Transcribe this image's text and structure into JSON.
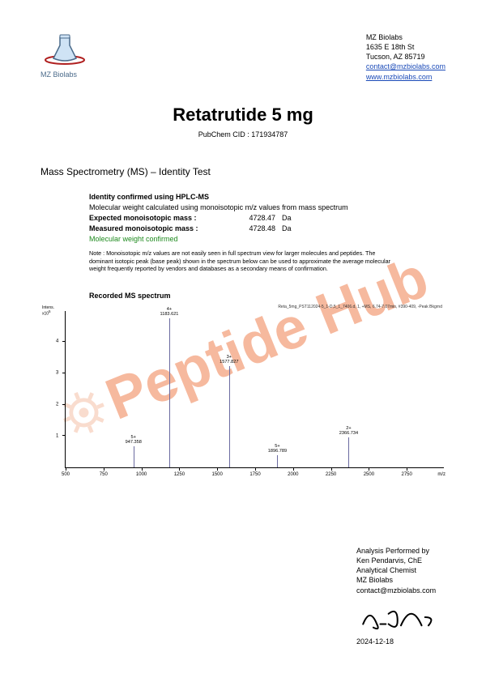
{
  "company": {
    "name": "MZ Biolabs",
    "addr1": "1635 E 18th St",
    "addr2": "Tucson, AZ 85719",
    "email": "contact@mzbiolabs.com",
    "web": "www.mzbiolabs.com"
  },
  "title": "Retatrutide 5 mg",
  "subtitle": "PubChem CID : 171934787",
  "section_heading": "Mass Spectrometry (MS) – Identity Test",
  "identity_line": "Identity confirmed using HPLC-MS",
  "mw_line": "Molecular weight calculated using monoisotopic m/z values from mass spectrum",
  "expected_label": "Expected monoisotopic mass :",
  "expected_value": "4728.47",
  "measured_label": "Measured monoisotopic mass :",
  "measured_value": "4728.48",
  "unit": "Da",
  "confirm_text": "Molecular weight confirmed",
  "note_text": "Note : Monoisotopic m/z values are not easily seen in full spectrum view for larger molecules and peptides. The dominant isotopic peak (base peak) shown in the spectrum below can be used to approximate the average molecular weight frequently reported by vendors and databases as a secondary means of confirmation.",
  "spectrum_heading": "Recorded MS spectrum",
  "chart": {
    "meta_text": "Reta_5mg_PST112024-5_1-D,5_1_7406.d, 1, +MS, 6.74-7.07min, #390-409, -Peak Bkgrnd",
    "x_min": 500,
    "x_max": 3000,
    "y_max_label": "Intens.\nx10⁵",
    "x_ticks": [
      500,
      750,
      1000,
      1250,
      1500,
      1750,
      2000,
      2250,
      2500,
      2750
    ],
    "y_ticks": [
      1,
      2,
      3,
      4
    ],
    "mz_label": "m/z",
    "peaks": [
      {
        "mz": 947.358,
        "rel_h": 0.14,
        "charge": "5+",
        "label": "947.358"
      },
      {
        "mz": 1183.621,
        "rel_h": 1.0,
        "charge": "4+",
        "label": "1183.621"
      },
      {
        "mz": 1577.827,
        "rel_h": 0.68,
        "charge": "3+",
        "label": "1577.827"
      },
      {
        "mz": 1896.789,
        "rel_h": 0.08,
        "charge": "5+",
        "label": "1896.789"
      },
      {
        "mz": 2366.734,
        "rel_h": 0.2,
        "charge": "2+",
        "label": "2366.734"
      }
    ]
  },
  "footer": {
    "l1": "Analysis Performed by",
    "l2": "Ken Pendarvis, ChE",
    "l3": "Analytical Chemist",
    "l4": "MZ Biolabs",
    "l5": "contact@mzbiolabs.com",
    "date": "2024-12-18"
  },
  "watermark": "Peptide Hub",
  "colors": {
    "link": "#1a4ab8",
    "confirm": "#1e8a1e",
    "peak": "#6a6aa0",
    "watermark": "#f08050"
  }
}
